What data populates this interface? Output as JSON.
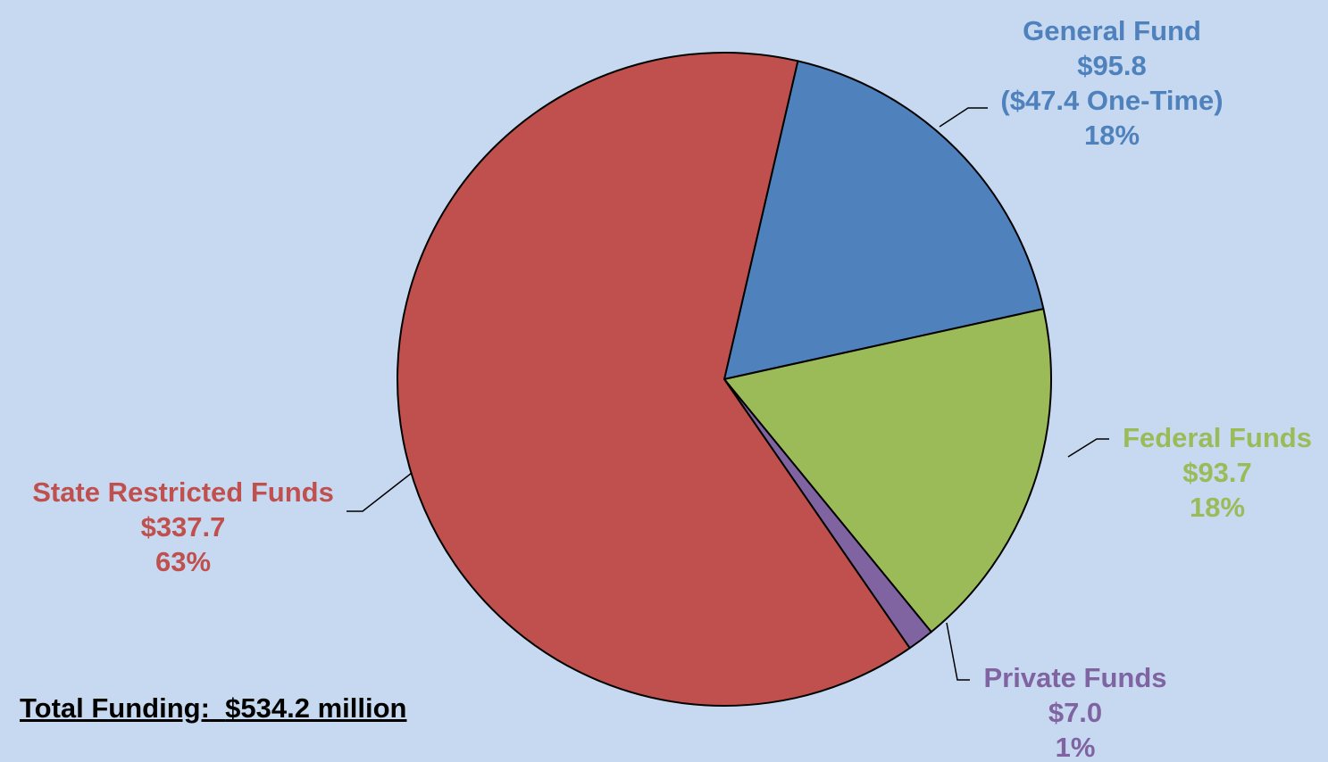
{
  "chart_data": {
    "type": "pie",
    "title": "",
    "unit_note": "",
    "slices": [
      {
        "name": "General Fund",
        "value": 95.8,
        "value_label": "$95.8",
        "note": "($47.4 One-Time)",
        "percent_label": "18%",
        "color": "#4f81bd",
        "text_color": "#4f81bd"
      },
      {
        "name": "Federal Funds",
        "value": 93.7,
        "value_label": "$93.7",
        "note": "",
        "percent_label": "18%",
        "color": "#9bbb59",
        "text_color": "#9bbb59"
      },
      {
        "name": "Private Funds",
        "value": 7.0,
        "value_label": "$7.0",
        "note": "",
        "percent_label": "1%",
        "color": "#8064a2",
        "text_color": "#8064a2"
      },
      {
        "name": "State Restricted Funds",
        "value": 337.7,
        "value_label": "$337.7",
        "note": "",
        "percent_label": "63%",
        "color": "#c0504d",
        "text_color": "#c0504d"
      }
    ],
    "start_angle_deg": 13,
    "direction": "clockwise",
    "background": "#c6d9f1"
  },
  "total": {
    "label": "Total Funding:",
    "value": "$534.2 million"
  }
}
